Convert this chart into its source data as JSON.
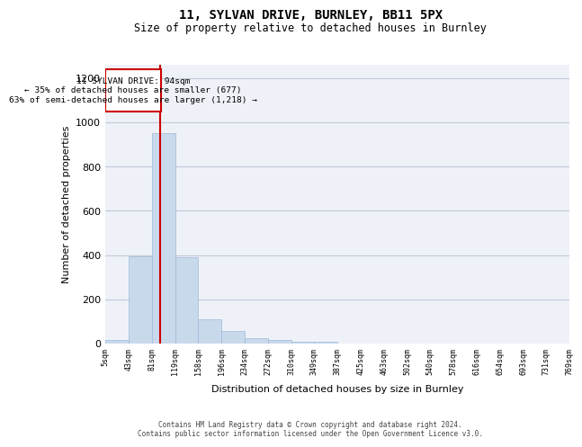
{
  "title1": "11, SYLVAN DRIVE, BURNLEY, BB11 5PX",
  "title2": "Size of property relative to detached houses in Burnley",
  "xlabel": "Distribution of detached houses by size in Burnley",
  "ylabel": "Number of detached properties",
  "bin_labels": [
    "5sqm",
    "43sqm",
    "81sqm",
    "119sqm",
    "158sqm",
    "196sqm",
    "234sqm",
    "272sqm",
    "310sqm",
    "349sqm",
    "387sqm",
    "425sqm",
    "463sqm",
    "502sqm",
    "540sqm",
    "578sqm",
    "616sqm",
    "654sqm",
    "693sqm",
    "731sqm",
    "769sqm"
  ],
  "bar_values": [
    15,
    395,
    950,
    390,
    110,
    55,
    25,
    15,
    10,
    10,
    0,
    0,
    0,
    0,
    0,
    0,
    0,
    0,
    0,
    0
  ],
  "bar_color": "#c9d9ec",
  "bar_edge_color": "#a0b8d8",
  "grid_color": "#c0c8d8",
  "background_color": "#eef2f8",
  "red_line_x": 2.35,
  "annotation_text": "11 SYLVAN DRIVE: 94sqm\n← 35% of detached houses are smaller (677)\n63% of semi-detached houses are larger (1,218) →",
  "annotation_box_color": "#cc0000",
  "ylim": [
    0,
    1260
  ],
  "yticks": [
    0,
    200,
    400,
    600,
    800,
    1000,
    1200
  ],
  "footer1": "Contains HM Land Registry data © Crown copyright and database right 2024.",
  "footer2": "Contains public sector information licensed under the Open Government Licence v3.0."
}
